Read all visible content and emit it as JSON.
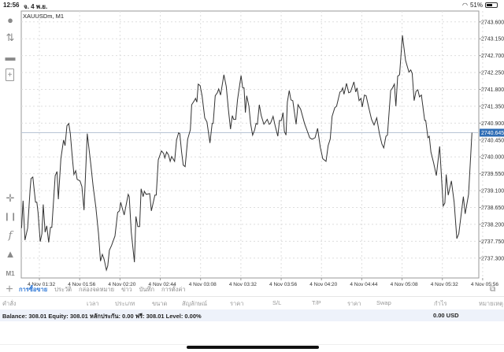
{
  "status_bar": {
    "time": "12:56",
    "date": "จ. 4 พ.ย.",
    "battery": "51%",
    "battery_level": 0.51
  },
  "chart_data": {
    "type": "line",
    "title": "XAUUSDm, M1",
    "symbol": "XAUUSDm",
    "timeframe": "M1",
    "x_unit": "minutes after 4 Nov 01:32",
    "xlim": [
      -10.8,
      261.7
    ],
    "ylim": [
      2736.77,
      2743.89
    ],
    "grid": true,
    "x_ticks": [
      {
        "t": 0,
        "label": "4 Nov 01:32"
      },
      {
        "t": 24,
        "label": "4 Nov 01:56"
      },
      {
        "t": 48,
        "label": "4 Nov 02:20"
      },
      {
        "t": 72,
        "label": "4 Nov 02:44"
      },
      {
        "t": 96,
        "label": "4 Nov 03:08"
      },
      {
        "t": 120,
        "label": "4 Nov 03:32"
      },
      {
        "t": 144,
        "label": "4 Nov 03:56"
      },
      {
        "t": 168,
        "label": "4 Nov 04:20"
      },
      {
        "t": 192,
        "label": "4 Nov 04:44"
      },
      {
        "t": 216,
        "label": "4 Nov 05:08"
      },
      {
        "t": 240,
        "label": "4 Nov 05:32"
      },
      {
        "t": 264,
        "label": "4 Nov 05:56"
      }
    ],
    "y_ticks": [
      "2743.600",
      "2743.150",
      "2742.700",
      "2742.250",
      "2741.800",
      "2741.350",
      "2740.900",
      "2740.450",
      "2740.000",
      "2739.550",
      "2739.100",
      "2738.650",
      "2738.200",
      "2737.750",
      "2737.300"
    ],
    "current_price": 2740.645,
    "current_price_label": "2740.645",
    "current_price_color": "#2f6db5",
    "series": [
      {
        "name": "XAUUSDm",
        "color": "#333333",
        "points": [
          [
            -10.6,
            2738.1
          ],
          [
            -9.7,
            2738.83
          ],
          [
            -8.6,
            2737.78
          ],
          [
            -7.0,
            2738.1
          ],
          [
            -5.5,
            2739.15
          ],
          [
            -5.0,
            2739.42
          ],
          [
            -3.9,
            2739.46
          ],
          [
            -2.3,
            2738.79
          ],
          [
            -1.5,
            2738.79
          ],
          [
            -0.8,
            2738.52
          ],
          [
            0.5,
            2737.74
          ],
          [
            1.5,
            2737.95
          ],
          [
            2.3,
            2738.73
          ],
          [
            3.4,
            2737.99
          ],
          [
            4.4,
            2738.16
          ],
          [
            5.5,
            2737.72
          ],
          [
            6.6,
            2738.12
          ],
          [
            7.4,
            2738.12
          ],
          [
            9.4,
            2739.5
          ],
          [
            10.5,
            2739.61
          ],
          [
            11.3,
            2738.87
          ],
          [
            12.8,
            2739.95
          ],
          [
            14.4,
            2740.45
          ],
          [
            15.3,
            2740.3
          ],
          [
            16.4,
            2740.83
          ],
          [
            17.5,
            2740.89
          ],
          [
            18.4,
            2740.62
          ],
          [
            19.6,
            2739.99
          ],
          [
            20.6,
            2739.53
          ],
          [
            21.6,
            2739.63
          ],
          [
            22.5,
            2739.4
          ],
          [
            24.2,
            2739.36
          ],
          [
            25.3,
            2739.21
          ],
          [
            26.6,
            2738.58
          ],
          [
            28.5,
            2740.62
          ],
          [
            30.5,
            2739.84
          ],
          [
            32.0,
            2739.21
          ],
          [
            33.6,
            2738.66
          ],
          [
            35.2,
            2737.95
          ],
          [
            36.4,
            2737.22
          ],
          [
            37.5,
            2737.4
          ],
          [
            38.6,
            2737.26
          ],
          [
            39.9,
            2736.98
          ],
          [
            40.7,
            2737.09
          ],
          [
            41.7,
            2737.51
          ],
          [
            43.0,
            2737.64
          ],
          [
            45.0,
            2737.89
          ],
          [
            46.6,
            2738.52
          ],
          [
            47.7,
            2738.56
          ],
          [
            48.4,
            2738.79
          ],
          [
            50.5,
            2738.45
          ],
          [
            52.9,
            2739.0
          ],
          [
            53.5,
            2738.94
          ],
          [
            54.7,
            2737.99
          ],
          [
            56.6,
            2737.19
          ],
          [
            57.5,
            2738.41
          ],
          [
            58.6,
            2738.14
          ],
          [
            59.7,
            2738.14
          ],
          [
            60.6,
            2739.15
          ],
          [
            61.8,
            2738.94
          ],
          [
            62.5,
            2739.08
          ],
          [
            63.6,
            2739.0
          ],
          [
            65.7,
            2739.02
          ],
          [
            66.7,
            2738.56
          ],
          [
            68.8,
            2738.98
          ],
          [
            69.6,
            2738.98
          ],
          [
            70.8,
            2739.92
          ],
          [
            72.7,
            2740.16
          ],
          [
            74.0,
            2740.09
          ],
          [
            74.7,
            2739.97
          ],
          [
            75.8,
            2740.13
          ],
          [
            76.9,
            2740.05
          ],
          [
            77.9,
            2739.88
          ],
          [
            78.8,
            2740.01
          ],
          [
            80.5,
            2739.88
          ],
          [
            81.7,
            2740.45
          ],
          [
            82.9,
            2740.64
          ],
          [
            83.6,
            2740.62
          ],
          [
            84.7,
            2740.13
          ],
          [
            85.7,
            2739.78
          ],
          [
            86.8,
            2739.74
          ],
          [
            88.3,
            2740.47
          ],
          [
            89.9,
            2740.72
          ],
          [
            90.7,
            2741.39
          ],
          [
            92.3,
            2741.5
          ],
          [
            93.0,
            2741.56
          ],
          [
            93.8,
            2741.46
          ],
          [
            94.6,
            2741.94
          ],
          [
            95.7,
            2741.9
          ],
          [
            96.9,
            2741.63
          ],
          [
            98.5,
            2741.04
          ],
          [
            99.8,
            2740.93
          ],
          [
            101.6,
            2740.37
          ],
          [
            102.9,
            2740.89
          ],
          [
            103.5,
            2740.89
          ],
          [
            104.7,
            2741.63
          ],
          [
            106.0,
            2741.71
          ],
          [
            106.8,
            2741.81
          ],
          [
            107.9,
            2741.65
          ],
          [
            109.9,
            2742.19
          ],
          [
            111.3,
            2741.88
          ],
          [
            112.6,
            2741.25
          ],
          [
            113.8,
            2740.74
          ],
          [
            114.9,
            2741.1
          ],
          [
            115.7,
            2741.0
          ],
          [
            116.9,
            2741.0
          ],
          [
            118.0,
            2741.52
          ],
          [
            120.1,
            2742.17
          ],
          [
            121.1,
            2741.84
          ],
          [
            121.9,
            2741.84
          ],
          [
            122.7,
            2741.18
          ],
          [
            123.5,
            2741.63
          ],
          [
            124.8,
            2741.35
          ],
          [
            125.8,
            2740.89
          ],
          [
            127.0,
            2740.58
          ],
          [
            128.2,
            2740.72
          ],
          [
            129.0,
            2740.89
          ],
          [
            129.8,
            2740.87
          ],
          [
            131.0,
            2741.39
          ],
          [
            132.1,
            2741.1
          ],
          [
            133.7,
            2740.87
          ],
          [
            135.7,
            2741.0
          ],
          [
            136.8,
            2740.87
          ],
          [
            137.6,
            2740.89
          ],
          [
            139.2,
            2741.08
          ],
          [
            140.4,
            2740.83
          ],
          [
            142.0,
            2740.55
          ],
          [
            143.0,
            2740.97
          ],
          [
            144.1,
            2740.97
          ],
          [
            145.1,
            2741.18
          ],
          [
            145.9,
            2740.68
          ],
          [
            146.9,
            2740.58
          ],
          [
            147.7,
            2741.46
          ],
          [
            148.8,
            2741.77
          ],
          [
            149.8,
            2741.52
          ],
          [
            150.9,
            2741.5
          ],
          [
            152.9,
            2740.87
          ],
          [
            154.0,
            2741.39
          ],
          [
            155.6,
            2741.27
          ],
          [
            157.9,
            2740.89
          ],
          [
            161.0,
            2740.51
          ],
          [
            162.3,
            2740.47
          ],
          [
            164.2,
            2740.51
          ],
          [
            165.7,
            2740.76
          ],
          [
            167.3,
            2740.26
          ],
          [
            168.8,
            2739.95
          ],
          [
            170.7,
            2739.88
          ],
          [
            172.0,
            2740.3
          ],
          [
            173.2,
            2740.47
          ],
          [
            174.3,
            2741.08
          ],
          [
            175.9,
            2741.31
          ],
          [
            177.0,
            2741.35
          ],
          [
            179.0,
            2741.73
          ],
          [
            179.8,
            2741.75
          ],
          [
            180.6,
            2741.84
          ],
          [
            181.4,
            2741.67
          ],
          [
            182.9,
            2741.96
          ],
          [
            184.2,
            2741.71
          ],
          [
            185.3,
            2741.73
          ],
          [
            187.3,
            2742.0
          ],
          [
            188.4,
            2741.73
          ],
          [
            189.2,
            2741.84
          ],
          [
            190.4,
            2741.5
          ],
          [
            191.5,
            2741.56
          ],
          [
            192.3,
            2741.33
          ],
          [
            193.6,
            2741.65
          ],
          [
            194.6,
            2741.63
          ],
          [
            196.2,
            2741.31
          ],
          [
            197.8,
            2741.0
          ],
          [
            199.3,
            2740.85
          ],
          [
            200.9,
            2741.04
          ],
          [
            202.5,
            2740.62
          ],
          [
            204.0,
            2740.34
          ],
          [
            205.1,
            2740.24
          ],
          [
            206.4,
            2740.55
          ],
          [
            207.3,
            2740.58
          ],
          [
            209.2,
            2741.77
          ],
          [
            210.3,
            2741.84
          ],
          [
            211.4,
            2741.94
          ],
          [
            212.3,
            2741.35
          ],
          [
            213.4,
            2742.15
          ],
          [
            214.5,
            2742.19
          ],
          [
            216.2,
            2743.24
          ],
          [
            218.1,
            2742.57
          ],
          [
            220.1,
            2742.26
          ],
          [
            221.2,
            2742.32
          ],
          [
            222.0,
            2742.23
          ],
          [
            223.2,
            2741.5
          ],
          [
            224.3,
            2741.75
          ],
          [
            225.4,
            2741.79
          ],
          [
            226.4,
            2741.6
          ],
          [
            227.5,
            2741.65
          ],
          [
            229.5,
            2740.97
          ],
          [
            230.1,
            2740.97
          ],
          [
            231.4,
            2740.51
          ],
          [
            232.2,
            2740.55
          ],
          [
            233.2,
            2740.13
          ],
          [
            234.8,
            2739.84
          ],
          [
            236.4,
            2739.5
          ],
          [
            238.4,
            2740.28
          ],
          [
            240.5,
            2738.69
          ],
          [
            241.5,
            2738.77
          ],
          [
            242.3,
            2739.53
          ],
          [
            243.5,
            2738.98
          ],
          [
            245.4,
            2739.36
          ],
          [
            247.0,
            2738.79
          ],
          [
            248.6,
            2737.82
          ],
          [
            249.8,
            2737.95
          ],
          [
            252.5,
            2738.94
          ],
          [
            253.6,
            2738.48
          ],
          [
            255.6,
            2739.0
          ],
          [
            257.6,
            2740.645
          ]
        ]
      }
    ]
  },
  "toolbar": {
    "timeframe_label": "M1"
  },
  "terminal": {
    "tabs": [
      "การซื้อขาย",
      "ประวัติ",
      "กล่องจดหมาย",
      "ข่าว",
      "บันทึก",
      "การตั้งค่า"
    ],
    "active_tab": 0,
    "columns": [
      "คำสั่ง",
      "เวลา",
      "ประเภท",
      "ขนาด",
      "สัญลักษณ์",
      "ราคา",
      "S/L",
      "T/P",
      "ราคา",
      "Swap",
      "กำไร",
      "หมายเหตุ"
    ],
    "balance_text": "Balance: 308.01 Equity: 308.01 หลักประกัน: 0.00 ฟรี: 308.01 Level: 0.00%",
    "profit": "0.00  USD"
  }
}
